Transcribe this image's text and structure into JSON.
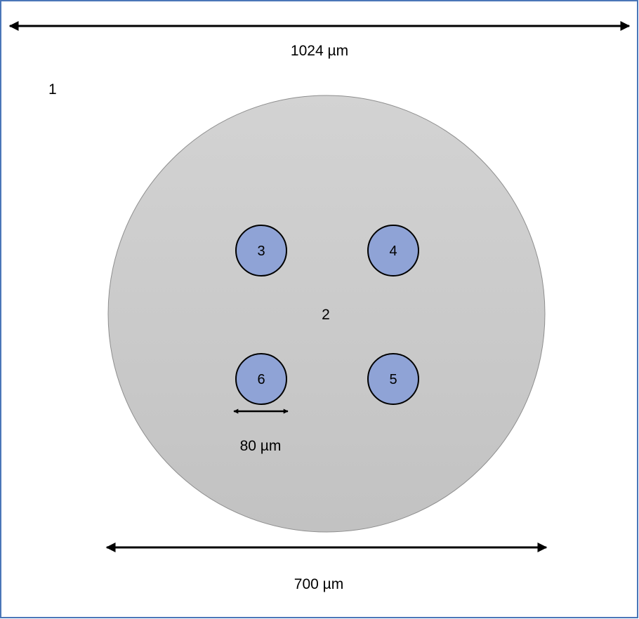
{
  "diagram": {
    "frame_color": "#4a76b8",
    "top_dimension": {
      "label": "1024 µm"
    },
    "bottom_dimension": {
      "label": "700 µm"
    },
    "channel_dimension": {
      "label": "80 µm"
    },
    "region_outer": {
      "label": "1"
    },
    "region_disk": {
      "label": "2",
      "fill_top": "#d3d3d3",
      "fill_bottom": "#c2c2c2"
    },
    "channels": [
      {
        "label": "3",
        "fill": "#8fa3d6"
      },
      {
        "label": "4",
        "fill": "#8fa3d6"
      },
      {
        "label": "5",
        "fill": "#8fa3d6"
      },
      {
        "label": "6",
        "fill": "#8fa3d6"
      }
    ]
  }
}
